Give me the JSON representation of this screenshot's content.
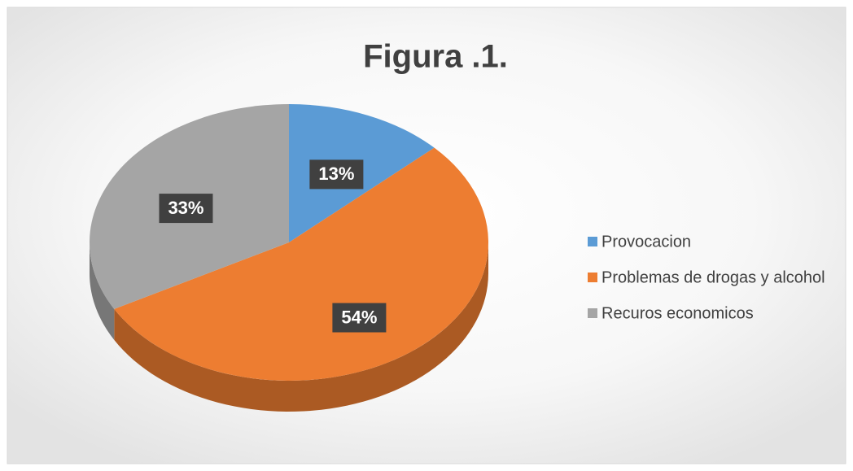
{
  "chart_data": {
    "type": "pie",
    "title": "Figura .1.",
    "categories": [
      "Provocacion",
      "Problemas de drogas y alcohol",
      "Recuros economicos"
    ],
    "values": [
      13,
      54,
      33
    ],
    "value_labels": [
      "13%",
      "54%",
      "33%"
    ],
    "colors": [
      "#5b9bd5",
      "#ed7d31",
      "#a5a5a5"
    ],
    "legend": "right"
  }
}
